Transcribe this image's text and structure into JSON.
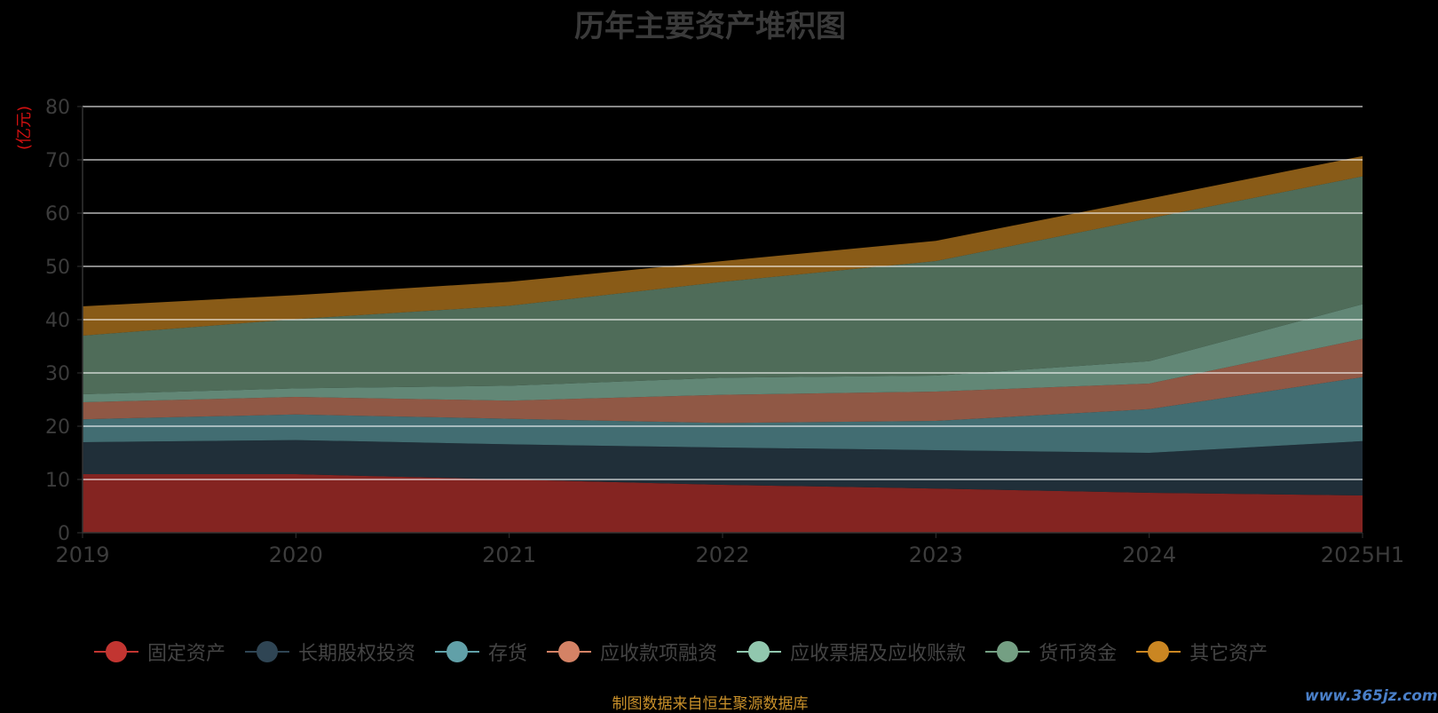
{
  "chart_data": {
    "type": "area",
    "stacked": true,
    "title": "历年主要资产堆积图",
    "ylabel": "(亿元)",
    "xlabel": "",
    "ylim": [
      0,
      80
    ],
    "yticks": [
      0,
      10,
      20,
      30,
      40,
      50,
      60,
      70,
      80
    ],
    "categories": [
      "2019",
      "2020",
      "2021",
      "2022",
      "2023",
      "2024",
      "2025H1"
    ],
    "grid": true,
    "legend_position": "bottom",
    "series": [
      {
        "name": "固定资产",
        "color": "#c23531",
        "values": [
          11.0,
          11.0,
          10.0,
          9.0,
          8.3,
          7.5,
          7.0
        ]
      },
      {
        "name": "长期股权投资",
        "color": "#2f4554",
        "values": [
          6.0,
          6.4,
          6.6,
          7.0,
          7.2,
          7.5,
          10.2
        ]
      },
      {
        "name": "存货",
        "color": "#61a0a8",
        "values": [
          4.3,
          4.8,
          4.8,
          4.6,
          5.5,
          8.2,
          12.0
        ]
      },
      {
        "name": "应收款项融资",
        "color": "#d48265",
        "values": [
          3.2,
          3.3,
          3.4,
          5.3,
          5.5,
          4.8,
          7.2
        ]
      },
      {
        "name": "应收票据及应收账款",
        "color": "#91c7ae",
        "values": [
          1.5,
          1.6,
          2.8,
          3.2,
          3.0,
          4.2,
          6.5
        ]
      },
      {
        "name": "货币资金",
        "color": "#749f83",
        "values": [
          11.0,
          13.0,
          15.0,
          18.0,
          21.5,
          26.8,
          24.0
        ]
      },
      {
        "name": "其它资产",
        "color": "#ca8622",
        "values": [
          5.5,
          4.5,
          4.5,
          3.9,
          3.8,
          3.7,
          3.8
        ]
      }
    ]
  },
  "source_note": "制图数据来自恒生聚源数据库",
  "watermark": "www.365jz.com"
}
